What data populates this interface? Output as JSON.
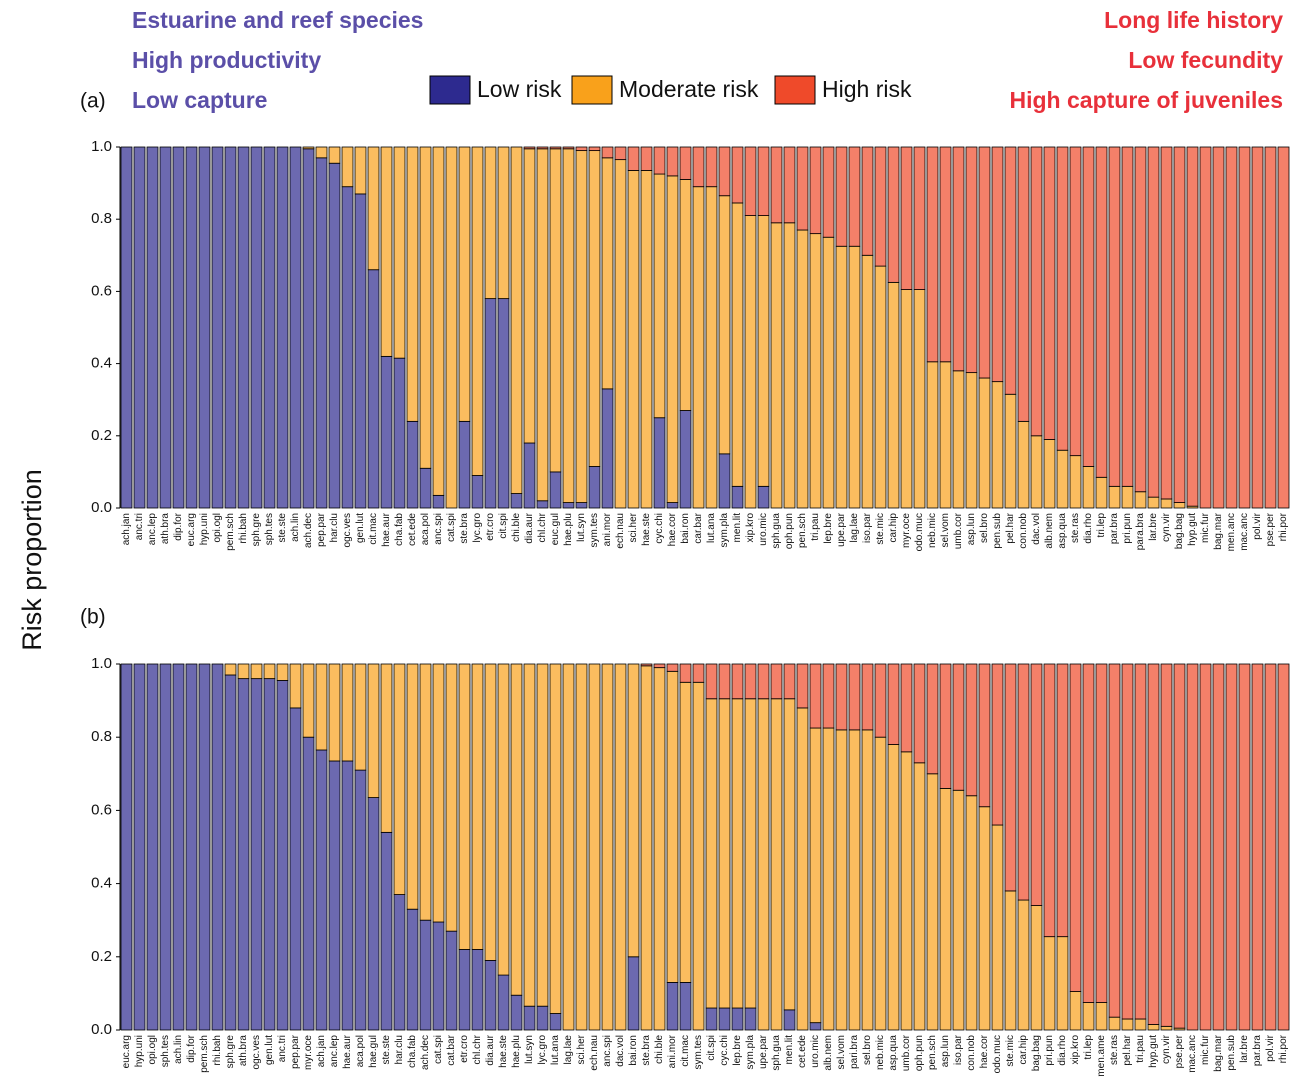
{
  "annotations": {
    "left": [
      "Estuarine and reef species",
      "High productivity",
      "Low capture"
    ],
    "right": [
      "Long life history",
      "Low fecundity",
      "High capture of juveniles"
    ]
  },
  "ylabel": "Risk proportion",
  "chart_data": [
    {
      "type": "stacked_bar",
      "panel_label": "(a)",
      "categories": [
        "ach.jan",
        "anc.tri",
        "anc.lep",
        "ath.bra",
        "dip.for",
        "euc.arg",
        "hyp.uni",
        "opi.ogl",
        "pem.sch",
        "rhi.bah",
        "sph.gre",
        "sph.tes",
        "ste.ste",
        "ach.lin",
        "ach.dec",
        "pep.par",
        "har.clu",
        "ogc.ves",
        "gen.lut",
        "cit.mac",
        "hae.aur",
        "cha.fab",
        "cet.ede",
        "aca.pol",
        "anc.spi",
        "cat.spi",
        "ste.bra",
        "lyc.gro",
        "etr.cro",
        "cit.spi",
        "chi.ble",
        "dia.aur",
        "chl.chr",
        "euc.gul",
        "hae.plu",
        "lut.syn",
        "sym.tes",
        "ani.mor",
        "ech.nau",
        "sci.her",
        "hae.ste",
        "cyc.chi",
        "hae.cor",
        "bai.ron",
        "car.bar",
        "lut.ana",
        "sym.pla",
        "men.lit",
        "xip.kro",
        "uro.mic",
        "sph.gua",
        "oph.pun",
        "pen.sch",
        "tri.pau",
        "lep.bre",
        "upe.par",
        "lag.lae",
        "iso.par",
        "ste.mic",
        "car.hip",
        "myr.oce",
        "odo.muc",
        "neb.mic",
        "sel.vom",
        "umb.cor",
        "asp.lun",
        "sel.bro",
        "pen.sub",
        "pel.har",
        "con.nob",
        "dac.vol",
        "alb.nem",
        "asp.qua",
        "ste.ras",
        "dia.rho",
        "tri.lep",
        "par.bra",
        "pri.pun",
        "para.bra",
        "lar.bre",
        "cyn.vir",
        "bag.bag",
        "hyp.gut",
        "mic.fur",
        "bag.mar",
        "men.anc",
        "mac.anc",
        "pol.vir",
        "pse.per",
        "rhi.por"
      ],
      "series": [
        {
          "name": "Low risk",
          "color": "#2d2a8f",
          "values": [
            1,
            1,
            1,
            1,
            1,
            1,
            1,
            1,
            1,
            1,
            1,
            1,
            1,
            1,
            0.995,
            0.97,
            0.955,
            0.89,
            0.87,
            0.66,
            0.42,
            0.415,
            0.24,
            0.11,
            0.035,
            0,
            0.24,
            0.09,
            0.58,
            0.58,
            0.04,
            0.18,
            0.02,
            0.1,
            0.015,
            0.015,
            0.115,
            0.33,
            0,
            0,
            0,
            0.25,
            0.015,
            0.27,
            0,
            0,
            0.15,
            0.06,
            0,
            0.06,
            0,
            0,
            0,
            0,
            0,
            0,
            0,
            0,
            0,
            0,
            0,
            0,
            0,
            0,
            0,
            0,
            0,
            0,
            0,
            0,
            0,
            0,
            0,
            0,
            0,
            0,
            0,
            0,
            0,
            0,
            0,
            0,
            0,
            0,
            0,
            0,
            0,
            0,
            0,
            0
          ]
        },
        {
          "name": "Moderate risk",
          "color": "#f9a11b",
          "values": [
            0,
            0,
            0,
            0,
            0,
            0,
            0,
            0,
            0,
            0,
            0,
            0,
            0,
            0,
            0.005,
            0.03,
            0.045,
            0.11,
            0.13,
            0.34,
            0.58,
            0.585,
            0.76,
            0.89,
            0.965,
            1,
            0.76,
            0.91,
            0.42,
            0.42,
            0.96,
            0.815,
            0.975,
            0.895,
            0.98,
            0.975,
            0.875,
            0.64,
            0.965,
            0.935,
            0.935,
            0.675,
            0.905,
            0.64,
            0.89,
            0.89,
            0.715,
            0.785,
            0.81,
            0.75,
            0.79,
            0.79,
            0.77,
            0.76,
            0.75,
            0.725,
            0.725,
            0.7,
            0.67,
            0.625,
            0.605,
            0.605,
            0.405,
            0.405,
            0.38,
            0.375,
            0.36,
            0.35,
            0.315,
            0.24,
            0.2,
            0.19,
            0.16,
            0.145,
            0.115,
            0.085,
            0.06,
            0.06,
            0.045,
            0.03,
            0.025,
            0.015,
            0.005,
            0,
            0,
            0,
            0,
            0,
            0,
            0
          ]
        },
        {
          "name": "High risk",
          "color": "#ef4a2a",
          "values": [
            0,
            0,
            0,
            0,
            0,
            0,
            0,
            0,
            0,
            0,
            0,
            0,
            0,
            0,
            0,
            0,
            0,
            0,
            0,
            0,
            0,
            0,
            0,
            0,
            0,
            0,
            0,
            0,
            0,
            0,
            0,
            0.005,
            0.005,
            0.005,
            0.005,
            0.01,
            0.01,
            0.03,
            0.035,
            0.065,
            0.065,
            0.075,
            0.08,
            0.09,
            0.11,
            0.11,
            0.135,
            0.155,
            0.19,
            0.19,
            0.21,
            0.21,
            0.23,
            0.24,
            0.25,
            0.275,
            0.275,
            0.3,
            0.33,
            0.375,
            0.395,
            0.395,
            0.595,
            0.595,
            0.62,
            0.625,
            0.64,
            0.65,
            0.685,
            0.76,
            0.8,
            0.81,
            0.84,
            0.855,
            0.885,
            0.915,
            0.94,
            0.94,
            0.955,
            0.97,
            0.975,
            0.985,
            0.995,
            1,
            1,
            1,
            1,
            1,
            1,
            1
          ]
        }
      ],
      "ylim": [
        0,
        1
      ],
      "yticks": [
        {
          "value": 0,
          "label": "0.0"
        },
        0.2,
        0.4,
        0.6,
        0.8,
        {
          "value": 1,
          "label": "1.0"
        }
      ]
    },
    {
      "type": "stacked_bar",
      "panel_label": "(b)",
      "categories": [
        "euc.arg",
        "hyp.uni",
        "opi.ogl",
        "sph.tes",
        "ach.lin",
        "dip.for",
        "pem.sch",
        "rhi.bah",
        "sph.gre",
        "ath.bra",
        "ogc.ves",
        "gen.lut",
        "anc.tri",
        "pep.par",
        "myr.oce",
        "ach.jan",
        "anc.lep",
        "hae.aur",
        "aca.pol",
        "hae.gul",
        "ste.ste",
        "har.clu",
        "cha.fab",
        "ach.dec",
        "cat.spi",
        "cat.bar",
        "etr.cro",
        "chl.chr",
        "dia.aur",
        "hae.ste",
        "hae.plu",
        "lut.syn",
        "lyc.gro",
        "lut.ana",
        "lag.lae",
        "sci.her",
        "ech.nau",
        "anc.spi",
        "dac.vol",
        "bai.ron",
        "ste.bra",
        "chi.ble",
        "ani.mor",
        "cit.mac",
        "sym.tes",
        "cit.spi",
        "cyc.chi",
        "lep.bre",
        "sym.pla",
        "upe.par",
        "sph.gua",
        "men.lit",
        "cet.ede",
        "uro.mic",
        "alb.nem",
        "sel.vom",
        "pari.bra",
        "sel.bro",
        "neb.mic",
        "asp.qua",
        "umb.cor",
        "oph.pun",
        "pen.sch",
        "asp.lun",
        "iso.par",
        "con.nob",
        "hae.cor",
        "odo.muc",
        "ste.mic",
        "car.hip",
        "bag.bag",
        "pri.pun",
        "dia.rho",
        "xip.kro",
        "tri.lep",
        "men.ame",
        "ste.ras",
        "pel.har",
        "tri.pau",
        "hyp.gut",
        "cyn.vir",
        "pse.per",
        "mac.anc",
        "mic.fur",
        "bag.mar",
        "pen.sub",
        "lar.bre",
        "par.bra",
        "pol.vir",
        "rhi.por"
      ],
      "series": [
        {
          "name": "Low risk",
          "color": "#2d2a8f",
          "values": [
            1,
            1,
            1,
            1,
            1,
            1,
            1,
            1,
            0.97,
            0.96,
            0.96,
            0.96,
            0.955,
            0.88,
            0.8,
            0.765,
            0.735,
            0.735,
            0.71,
            0.635,
            0.54,
            0.37,
            0.33,
            0.3,
            0.295,
            0.27,
            0.22,
            0.22,
            0.19,
            0.15,
            0.095,
            0.065,
            0.065,
            0.045,
            0,
            0,
            0,
            0,
            0,
            0.2,
            0,
            0,
            0.13,
            0.13,
            0,
            0.06,
            0.06,
            0.06,
            0.06,
            0,
            0,
            0.055,
            0,
            0.02,
            0,
            0,
            0,
            0,
            0,
            0,
            0,
            0,
            0,
            0,
            0,
            0,
            0,
            0,
            0,
            0,
            0,
            0,
            0,
            0,
            0,
            0,
            0,
            0,
            0,
            0,
            0,
            0,
            0,
            0,
            0,
            0,
            0,
            0,
            0,
            0
          ]
        },
        {
          "name": "Moderate risk",
          "color": "#f9a11b",
          "values": [
            0,
            0,
            0,
            0,
            0,
            0,
            0,
            0,
            0.03,
            0.04,
            0.04,
            0.04,
            0.045,
            0.12,
            0.2,
            0.235,
            0.265,
            0.265,
            0.29,
            0.365,
            0.46,
            0.63,
            0.67,
            0.7,
            0.705,
            0.73,
            0.78,
            0.78,
            0.81,
            0.85,
            0.905,
            0.935,
            0.935,
            0.955,
            1,
            1,
            1,
            1,
            1,
            0.8,
            0.995,
            0.99,
            0.85,
            0.82,
            0.95,
            0.845,
            0.845,
            0.845,
            0.845,
            0.905,
            0.905,
            0.85,
            0.88,
            0.805,
            0.825,
            0.82,
            0.82,
            0.82,
            0.8,
            0.78,
            0.76,
            0.73,
            0.7,
            0.66,
            0.655,
            0.64,
            0.61,
            0.56,
            0.38,
            0.355,
            0.34,
            0.255,
            0.255,
            0.105,
            0.075,
            0.075,
            0.035,
            0.03,
            0.03,
            0.015,
            0.01,
            0.005,
            0,
            0,
            0,
            0,
            0,
            0,
            0,
            0
          ]
        },
        {
          "name": "High risk",
          "color": "#ef4a2a",
          "values": [
            0,
            0,
            0,
            0,
            0,
            0,
            0,
            0,
            0,
            0,
            0,
            0,
            0,
            0,
            0,
            0,
            0,
            0,
            0,
            0,
            0,
            0,
            0,
            0,
            0,
            0,
            0,
            0,
            0,
            0,
            0,
            0,
            0,
            0,
            0,
            0,
            0,
            0,
            0,
            0,
            0.005,
            0.01,
            0.02,
            0.05,
            0.05,
            0.095,
            0.095,
            0.095,
            0.095,
            0.095,
            0.095,
            0.095,
            0.12,
            0.175,
            0.175,
            0.18,
            0.18,
            0.18,
            0.2,
            0.22,
            0.24,
            0.27,
            0.3,
            0.34,
            0.345,
            0.36,
            0.39,
            0.44,
            0.62,
            0.645,
            0.66,
            0.745,
            0.745,
            0.895,
            0.925,
            0.925,
            0.965,
            0.97,
            0.97,
            0.985,
            0.99,
            0.995,
            1,
            1,
            1,
            1,
            1,
            1,
            1,
            1
          ]
        }
      ],
      "ylim": [
        0,
        1
      ],
      "yticks": [
        {
          "value": 0,
          "label": "0.0"
        },
        0.2,
        0.4,
        0.6,
        0.8,
        {
          "value": 1,
          "label": "1.0"
        }
      ]
    }
  ]
}
